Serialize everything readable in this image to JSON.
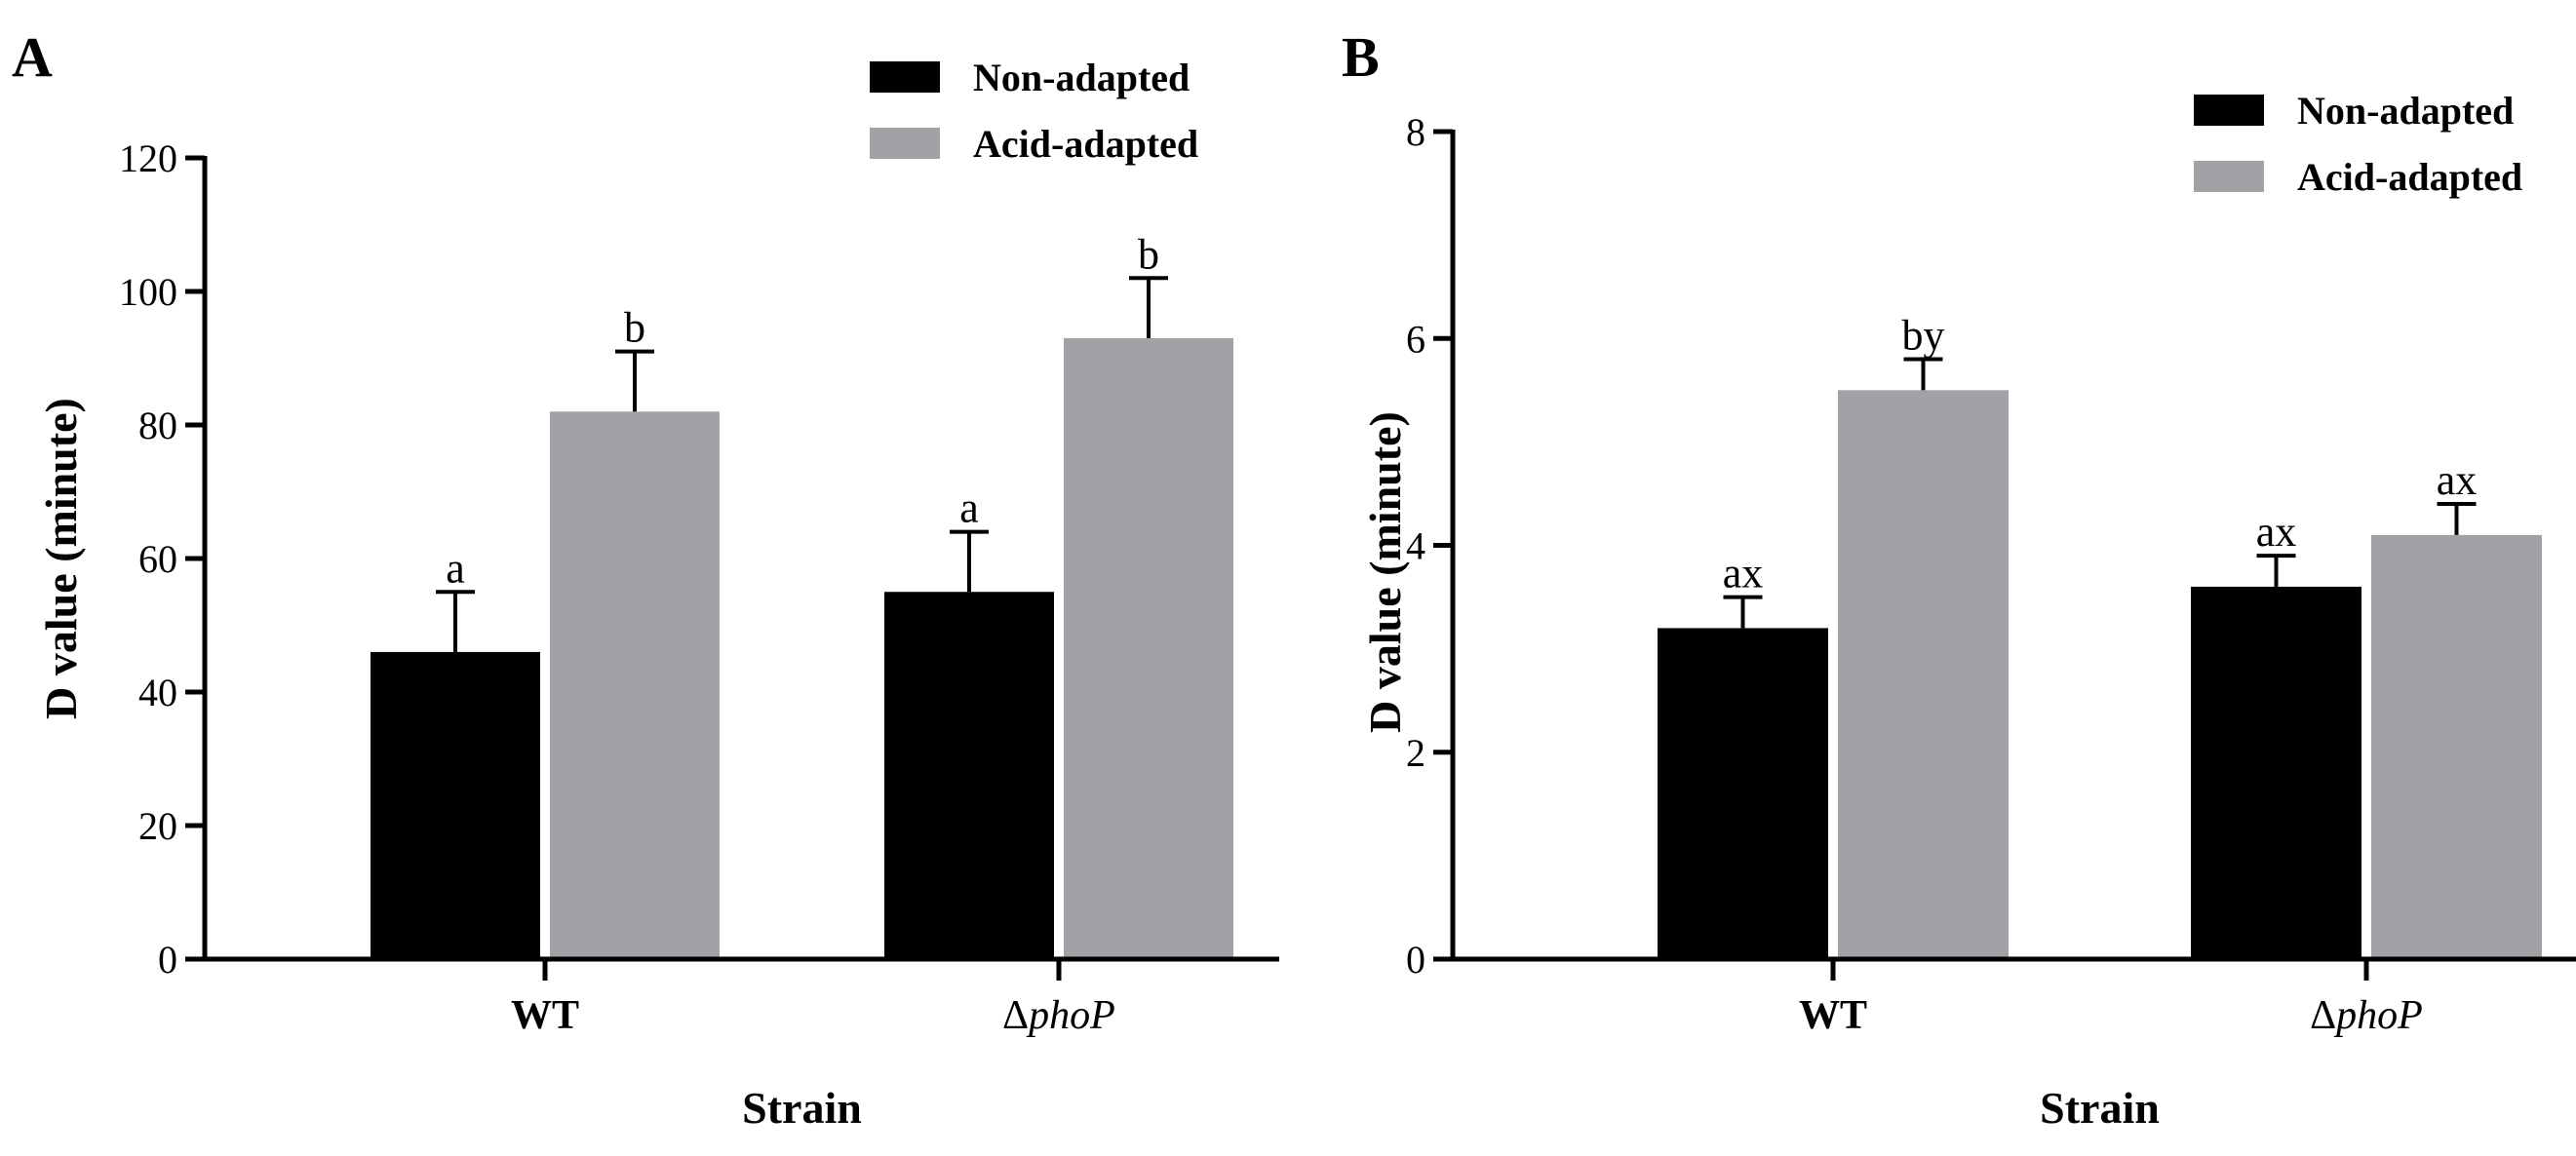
{
  "colors": {
    "non_adapted": "#000000",
    "acid_adapted": "#a2a1a6"
  },
  "chart_data": [
    {
      "panel": "A",
      "type": "bar",
      "title": "",
      "xlabel": "Strain",
      "ylabel": "D value (minute)",
      "ylim": [
        0,
        120
      ],
      "yticks": [
        0,
        20,
        40,
        60,
        80,
        100,
        120
      ],
      "categories": [
        "WT",
        "ΔphoP"
      ],
      "legend": {
        "position": "top-right",
        "entries": [
          "Non-adapted",
          "Acid-adapted"
        ]
      },
      "series": [
        {
          "name": "Non-adapted",
          "values": [
            46,
            55
          ],
          "errors": [
            9,
            9
          ],
          "labels": [
            "a",
            "a"
          ]
        },
        {
          "name": "Acid-adapted",
          "values": [
            82,
            93
          ],
          "errors": [
            9,
            9
          ],
          "labels": [
            "b",
            "b"
          ]
        }
      ]
    },
    {
      "panel": "B",
      "type": "bar",
      "title": "",
      "xlabel": "Strain",
      "ylabel": "D value (minute)",
      "ylim": [
        0,
        8
      ],
      "yticks": [
        0,
        2,
        4,
        6,
        8
      ],
      "categories": [
        "WT",
        "ΔphoP"
      ],
      "legend": {
        "position": "top-right",
        "entries": [
          "Non-adapted",
          "Acid-adapted"
        ]
      },
      "series": [
        {
          "name": "Non-adapted",
          "values": [
            3.2,
            3.6
          ],
          "errors": [
            0.3,
            0.3
          ],
          "labels": [
            "ax",
            "ax"
          ]
        },
        {
          "name": "Acid-adapted",
          "values": [
            5.5,
            4.1
          ],
          "errors": [
            0.3,
            0.3
          ],
          "labels": [
            "by",
            "ax"
          ]
        }
      ]
    }
  ]
}
